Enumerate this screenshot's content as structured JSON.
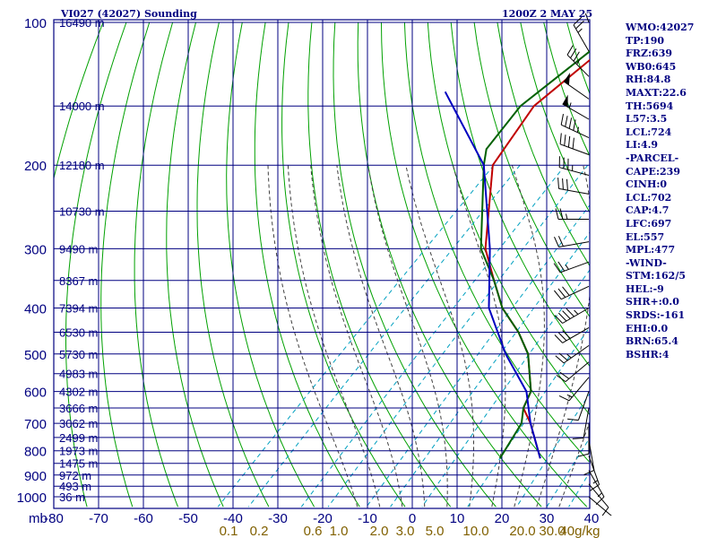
{
  "header": {
    "title": "VI027 (42027) Sounding",
    "timestamp": "1200Z  2 MAY 25"
  },
  "stats": [
    "WMO:42027",
    "TP:190",
    "FRZ:639",
    "WB0:645",
    "RH:84.8",
    "MAXT:22.6",
    "TH:5694",
    "L57:3.5",
    "LCL:724",
    "LI:4.9",
    "-PARCEL-",
    "CAPE:239",
    "CINH:0",
    "LCL:702",
    "CAP:4.7",
    "LFC:697",
    "EL:557",
    "MPL:477",
    "-WIND-",
    "STM:162/5",
    "HEL:-9",
    "SHR+:0.0",
    "SRDS:-161",
    "EHI:0.0",
    "BRN:65.4",
    "BSHR:4"
  ],
  "chart_data": {
    "type": "line",
    "chart_kind": "skew-T log-P sounding",
    "pressure_axis": {
      "scale": "log",
      "ticks": [
        "100",
        "200",
        "300",
        "400",
        "500",
        "600",
        "700",
        "800",
        "900",
        "1000"
      ],
      "unit_label": "mb",
      "range": [
        100,
        1000
      ]
    },
    "temperature_axis": {
      "unit": "°C",
      "ticks": [
        "-80",
        "-70",
        "-60",
        "-50",
        "-40",
        "-30",
        "-20",
        "-10",
        "0",
        "10",
        "20",
        "30",
        "40"
      ],
      "range": [
        -80,
        40
      ],
      "skew": "45-degree isotherms"
    },
    "mixing_ratio_labels": [
      "0.1",
      "0.2",
      "0.6",
      "1.0",
      "2.0",
      "3.0",
      "5.0",
      "10.0",
      "20.0",
      "30.0",
      "40g/kg"
    ],
    "height_labels": [
      {
        "p": 100,
        "text": "16490 m"
      },
      {
        "p": 150,
        "text": "14000 m"
      },
      {
        "p": 200,
        "text": "12180 m"
      },
      {
        "p": 250,
        "text": "10730 m"
      },
      {
        "p": 300,
        "text": "9490 m"
      },
      {
        "p": 350,
        "text": "8367 m"
      },
      {
        "p": 400,
        "text": "7394 m"
      },
      {
        "p": 450,
        "text": "6530 m"
      },
      {
        "p": 500,
        "text": "5730 m"
      },
      {
        "p": 550,
        "text": "4983 m"
      },
      {
        "p": 600,
        "text": "4302 m"
      },
      {
        "p": 650,
        "text": "3666 m"
      },
      {
        "p": 700,
        "text": "3062 m"
      },
      {
        "p": 750,
        "text": "2499 m"
      },
      {
        "p": 800,
        "text": "1973 m"
      },
      {
        "p": 850,
        "text": "1475 m"
      },
      {
        "p": 900,
        "text": "972 m"
      },
      {
        "p": 950,
        "text": "493 m"
      },
      {
        "p": 1000,
        "text": "36 m"
      }
    ],
    "series": [
      {
        "role": "temperature",
        "color": "#c00000",
        "points": [
          {
            "p": 100,
            "t": -56
          },
          {
            "p": 150,
            "t": -60
          },
          {
            "p": 200,
            "t": -56
          },
          {
            "p": 300,
            "t": -39
          },
          {
            "p": 350,
            "t": -30
          },
          {
            "p": 400,
            "t": -22
          },
          {
            "p": 450,
            "t": -13
          },
          {
            "p": 500,
            "t": -6
          },
          {
            "p": 600,
            "t": 3
          },
          {
            "p": 650,
            "t": 5
          },
          {
            "p": 700,
            "t": 10
          },
          {
            "p": 830,
            "t": 20
          }
        ]
      },
      {
        "role": "dewpoint",
        "color": "#006000",
        "points": [
          {
            "p": 100,
            "t": -58
          },
          {
            "p": 150,
            "t": -63
          },
          {
            "p": 185,
            "t": -61
          },
          {
            "p": 200,
            "t": -58
          },
          {
            "p": 300,
            "t": -40
          },
          {
            "p": 350,
            "t": -30
          },
          {
            "p": 400,
            "t": -22
          },
          {
            "p": 450,
            "t": -13
          },
          {
            "p": 500,
            "t": -6
          },
          {
            "p": 600,
            "t": 3
          },
          {
            "p": 650,
            "t": 5
          },
          {
            "p": 700,
            "t": 8
          },
          {
            "p": 830,
            "t": 11
          }
        ]
      },
      {
        "role": "parcel",
        "color": "#0000c0",
        "points": [
          {
            "p": 140,
            "t": -83
          },
          {
            "p": 200,
            "t": -58
          },
          {
            "p": 300,
            "t": -38
          },
          {
            "p": 400,
            "t": -25
          },
          {
            "p": 500,
            "t": -11
          },
          {
            "p": 600,
            "t": 2
          },
          {
            "p": 700,
            "t": 10
          },
          {
            "p": 830,
            "t": 20
          }
        ]
      }
    ],
    "wind_barbs": [
      {
        "p": 100,
        "dir": 340,
        "spd": 15
      },
      {
        "p": 115,
        "dir": 330,
        "spd": 25
      },
      {
        "p": 130,
        "dir": 315,
        "spd": 35
      },
      {
        "p": 145,
        "dir": 305,
        "spd": 50
      },
      {
        "p": 160,
        "dir": 300,
        "spd": 55
      },
      {
        "p": 175,
        "dir": 295,
        "spd": 45
      },
      {
        "p": 190,
        "dir": 290,
        "spd": 40
      },
      {
        "p": 210,
        "dir": 285,
        "spd": 35
      },
      {
        "p": 230,
        "dir": 280,
        "spd": 30
      },
      {
        "p": 260,
        "dir": 270,
        "spd": 25
      },
      {
        "p": 290,
        "dir": 260,
        "spd": 20
      },
      {
        "p": 320,
        "dir": 250,
        "spd": 25
      },
      {
        "p": 360,
        "dir": 245,
        "spd": 30
      },
      {
        "p": 400,
        "dir": 240,
        "spd": 45
      },
      {
        "p": 440,
        "dir": 240,
        "spd": 30
      },
      {
        "p": 480,
        "dir": 235,
        "spd": 25
      },
      {
        "p": 520,
        "dir": 230,
        "spd": 20
      },
      {
        "p": 560,
        "dir": 220,
        "spd": 15
      },
      {
        "p": 600,
        "dir": 200,
        "spd": 10
      },
      {
        "p": 650,
        "dir": 190,
        "spd": 10
      },
      {
        "p": 700,
        "dir": 180,
        "spd": 10
      },
      {
        "p": 760,
        "dir": 170,
        "spd": 10
      },
      {
        "p": 820,
        "dir": 160,
        "spd": 15
      },
      {
        "p": 880,
        "dir": 150,
        "spd": 15
      },
      {
        "p": 940,
        "dir": 140,
        "spd": 10
      },
      {
        "p": 1000,
        "dir": 130,
        "spd": 10
      }
    ],
    "colors": {
      "grid": "#000080",
      "dry_adiabat": "#00a000",
      "moist_adiabat": "#404040",
      "mixing_ratio": "#00a0c0",
      "mixing_label": "#806000"
    }
  }
}
